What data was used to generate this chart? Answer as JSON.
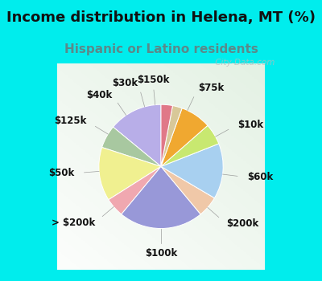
{
  "title": "Income distribution in Helena, MT (%)",
  "subtitle": "Hispanic or Latino residents",
  "bg_cyan": "#00eded",
  "bg_chart": "#e8f5ee",
  "labels": [
    "$75k",
    "$10k",
    "$60k",
    "$200k",
    "$100k",
    "> $200k",
    "$50k",
    "$125k",
    "$40k",
    "$30k",
    "$150k"
  ],
  "values": [
    14.0,
    6.0,
    14.0,
    5.0,
    22.0,
    5.5,
    14.5,
    5.5,
    8.0,
    2.5,
    3.0
  ],
  "colors": [
    "#b8aee8",
    "#a8c8a0",
    "#f0f090",
    "#f0a8b0",
    "#9898d8",
    "#f0c8a8",
    "#a8d0f0",
    "#c8e870",
    "#f0a830",
    "#d8c898",
    "#e07888"
  ],
  "watermark": " City-Data.com",
  "title_fontsize": 13,
  "subtitle_fontsize": 11,
  "label_fontsize": 8.5
}
